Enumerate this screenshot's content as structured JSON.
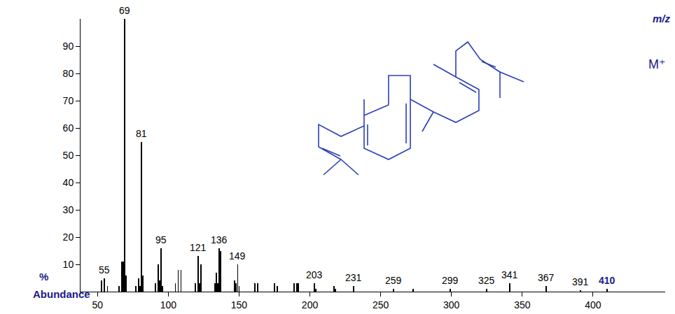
{
  "chart_data": {
    "type": "bar",
    "y_label": "Abundance",
    "y_unit": "%",
    "x_label": "m/z",
    "annotations": [
      "M⁺"
    ],
    "color": "#000000",
    "grid": false,
    "x": [
      53,
      55,
      57,
      65,
      67,
      68,
      69,
      70,
      77,
      79,
      80,
      81,
      82,
      91,
      93,
      94,
      95,
      96,
      105,
      107,
      109,
      119,
      121,
      122,
      123,
      133,
      134,
      135,
      136,
      137,
      147,
      148,
      149,
      150,
      161,
      163,
      175,
      177,
      189,
      191,
      192,
      203,
      204,
      217,
      218,
      231,
      259,
      273,
      299,
      325,
      341,
      367,
      391,
      410
    ],
    "values": [
      4,
      5,
      2,
      2,
      11,
      11,
      100,
      6,
      2,
      5,
      2,
      55,
      6,
      3,
      10,
      4,
      16,
      2,
      3,
      8,
      8,
      3,
      13,
      3,
      10,
      3,
      7,
      3,
      16,
      15,
      4,
      3,
      10,
      2,
      3,
      3,
      3,
      2,
      3,
      3,
      3,
      3,
      1,
      2,
      1,
      2,
      1,
      1,
      1,
      1,
      3,
      2,
      0.5,
      1
    ],
    "labels": [
      null,
      "55",
      null,
      null,
      null,
      null,
      "69",
      null,
      null,
      null,
      null,
      "81",
      null,
      null,
      null,
      null,
      "95",
      null,
      null,
      null,
      null,
      null,
      "121",
      null,
      null,
      null,
      null,
      null,
      "136",
      null,
      null,
      null,
      "149",
      null,
      null,
      null,
      null,
      null,
      null,
      null,
      null,
      "203",
      null,
      null,
      null,
      "231",
      "259",
      null,
      "299",
      "325",
      "341",
      "367",
      "391",
      "410"
    ],
    "xlim": [
      38,
      451
    ],
    "xticks": [
      50,
      100,
      150,
      200,
      250,
      300,
      350,
      400
    ],
    "ylim": [
      0,
      100
    ],
    "yticks": [
      10,
      20,
      30,
      40,
      50,
      60,
      70,
      80,
      90
    ]
  }
}
